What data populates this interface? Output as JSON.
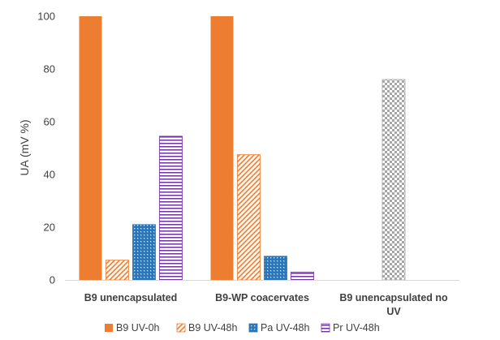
{
  "chart_data": {
    "type": "bar",
    "title": "",
    "xlabel": "",
    "ylabel": "UA (mV %)",
    "ylim": [
      0,
      100
    ],
    "yticks": [
      0,
      20,
      40,
      60,
      80,
      100
    ],
    "grid": false,
    "legend_position": "bottom",
    "categories": [
      [
        "B9 unencapsulated"
      ],
      [
        "B9-WP coacervates"
      ],
      [
        "B9 unencapsulated no",
        "UV"
      ]
    ],
    "series": [
      {
        "name": "B9 UV-0h",
        "values": [
          100,
          100,
          null
        ],
        "color": "#ED7D31",
        "pattern": "solid"
      },
      {
        "name": "B9 UV-48h",
        "values": [
          7.5,
          47.5,
          null
        ],
        "color": "#ED7D31",
        "pattern": "diagonal-hatch"
      },
      {
        "name": "Pa UV-48h",
        "values": [
          21,
          9,
          null
        ],
        "color": "#2E75B6",
        "pattern": "dots"
      },
      {
        "name": "Pr UV-48h",
        "values": [
          54.5,
          3,
          null
        ],
        "color": "#7030A0",
        "pattern": "horizontal-lines"
      },
      {
        "name": "",
        "values": [
          null,
          null,
          76
        ],
        "color": "#A6A6A6",
        "pattern": "checker"
      }
    ]
  }
}
